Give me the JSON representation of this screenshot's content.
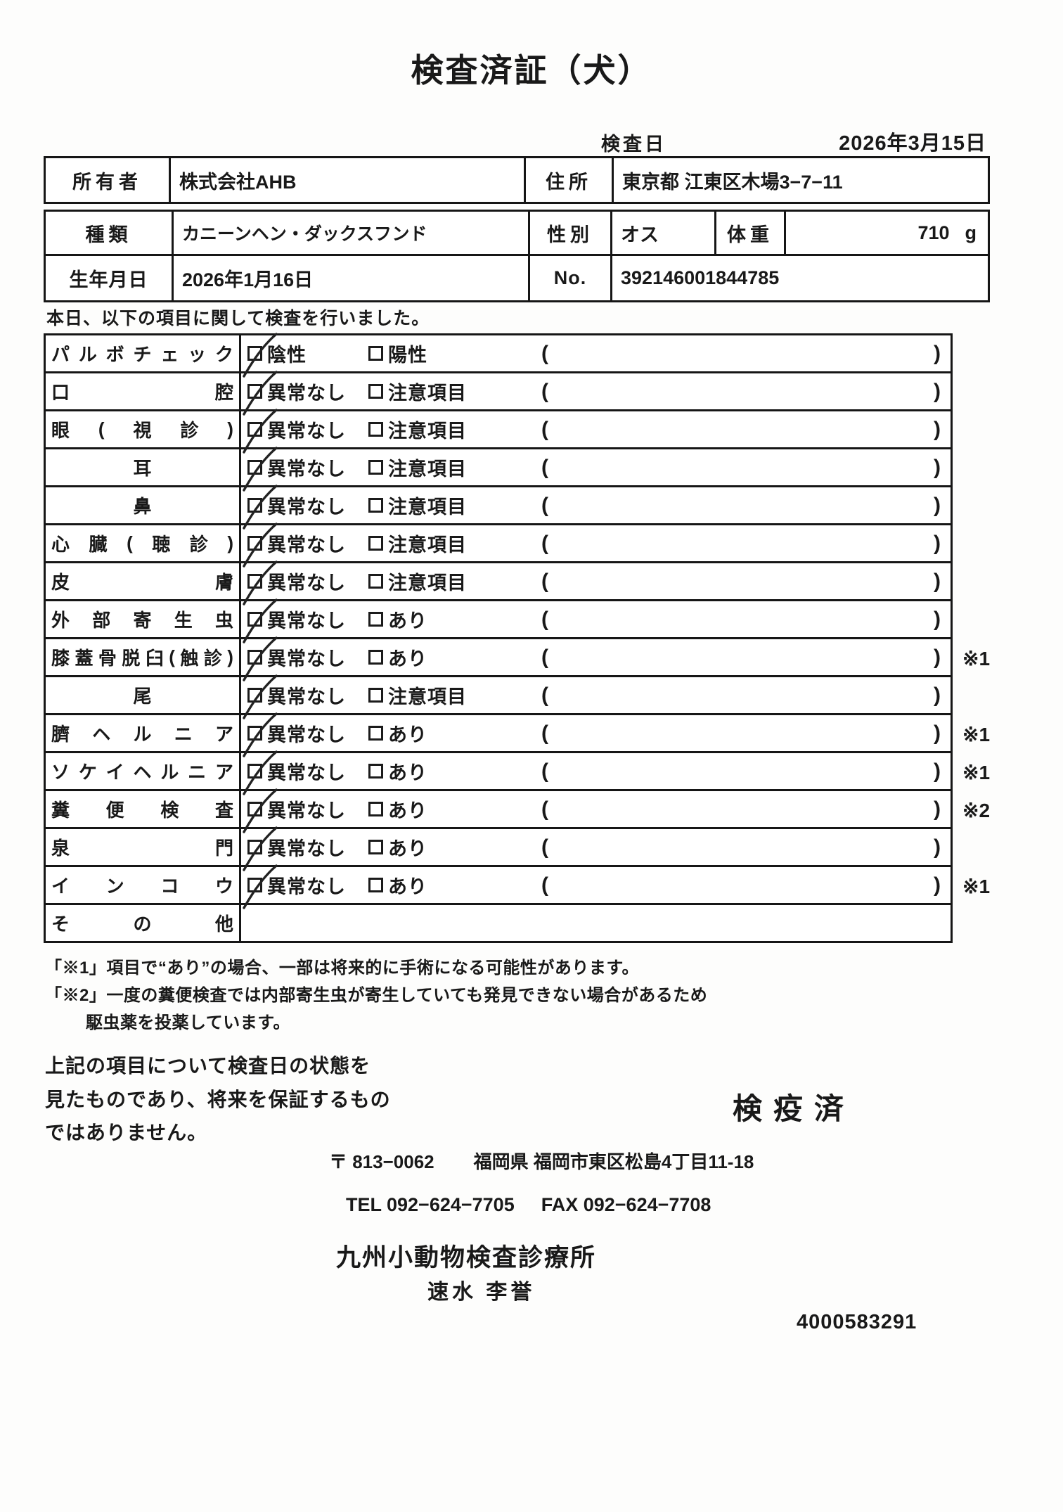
{
  "title": "検査済証（犬）",
  "exam_date": {
    "label": "検査日",
    "value": "2026年3月15日"
  },
  "owner": {
    "label": "所有者",
    "value": "株式会社AHB",
    "address_label": "住所",
    "address": "東京都 江東区木場3−7−11"
  },
  "animal": {
    "species_label": "種類",
    "species": "カニーンヘン・ダックスフンド",
    "sex_label": "性別",
    "sex": "オス",
    "weight_label": "体重",
    "weight": "710",
    "weight_unit": "g",
    "birth_label": "生年月日",
    "birth": "2026年1月16日",
    "no_label": "No.",
    "no": "392146001844785"
  },
  "intro": "本日、以下の項目に関して検査を行いました。",
  "checklist": {
    "paren_open": "(",
    "paren_close": ")",
    "rows": [
      {
        "label": "パルボチェック",
        "align": "justify",
        "opt1": "陰性",
        "opt2": "陽性",
        "checked": "opt1",
        "note": "",
        "empty": false
      },
      {
        "label": "口腔",
        "align": "justify",
        "opt1": "異常なし",
        "opt2": "注意項目",
        "checked": "opt1",
        "note": "",
        "empty": false
      },
      {
        "label": "眼(視診)",
        "align": "justify",
        "opt1": "異常なし",
        "opt2": "注意項目",
        "checked": "opt1",
        "note": "",
        "empty": false
      },
      {
        "label": "耳",
        "align": "center",
        "opt1": "異常なし",
        "opt2": "注意項目",
        "checked": "opt1",
        "note": "",
        "empty": false
      },
      {
        "label": "鼻",
        "align": "center",
        "opt1": "異常なし",
        "opt2": "注意項目",
        "checked": "opt1",
        "note": "",
        "empty": false
      },
      {
        "label": "心臓(聴診)",
        "align": "justify",
        "opt1": "異常なし",
        "opt2": "注意項目",
        "checked": "opt1",
        "note": "",
        "empty": false
      },
      {
        "label": "皮膚",
        "align": "justify",
        "opt1": "異常なし",
        "opt2": "注意項目",
        "checked": "opt1",
        "note": "",
        "empty": false
      },
      {
        "label": "外部寄生虫",
        "align": "justify",
        "opt1": "異常なし",
        "opt2": "あり",
        "checked": "opt1",
        "note": "",
        "empty": false
      },
      {
        "label": "膝蓋骨脱臼(触診)",
        "align": "justify",
        "opt1": "異常なし",
        "opt2": "あり",
        "checked": "opt1",
        "note": "※1",
        "empty": false
      },
      {
        "label": "尾",
        "align": "center",
        "opt1": "異常なし",
        "opt2": "注意項目",
        "checked": "opt1",
        "note": "",
        "empty": false
      },
      {
        "label": "臍ヘルニア",
        "align": "justify",
        "opt1": "異常なし",
        "opt2": "あり",
        "checked": "opt1",
        "note": "※1",
        "empty": false
      },
      {
        "label": "ソケイヘルニア",
        "align": "justify",
        "opt1": "異常なし",
        "opt2": "あり",
        "checked": "opt1",
        "note": "※1",
        "empty": false
      },
      {
        "label": "糞便検査",
        "align": "justify",
        "opt1": "異常なし",
        "opt2": "あり",
        "checked": "opt1",
        "note": "※2",
        "empty": false
      },
      {
        "label": "泉門",
        "align": "justify",
        "opt1": "異常なし",
        "opt2": "あり",
        "checked": "opt1",
        "note": "",
        "empty": false
      },
      {
        "label": "インコウ",
        "align": "justify",
        "opt1": "異常なし",
        "opt2": "あり",
        "checked": "opt1",
        "note": "※1",
        "empty": false
      },
      {
        "label": "その他",
        "align": "justify",
        "opt1": "",
        "opt2": "",
        "checked": "",
        "note": "",
        "empty": true
      }
    ]
  },
  "footnotes": [
    "「※1」項目で“あり”の場合、一部は将来的に手術になる可能性があります。",
    "「※2」一度の糞便検査では内部寄生虫が寄生していても発見できない場合があるため",
    "駆虫薬を投薬しています。"
  ],
  "disclaimer": [
    "上記の項目について検査日の状態を",
    "見たものであり、将来を保証するもの",
    "ではありません。"
  ],
  "stamp": "検疫済",
  "clinic": {
    "postal": "〒 813−0062",
    "address": "福岡県 福岡市東区松島4丁目11-18",
    "tel": "TEL 092−624−7705",
    "fax": "FAX 092−624−7708",
    "name": "九州小動物検査診療所",
    "vet": "速水 李誉"
  },
  "serial": "4000583291"
}
